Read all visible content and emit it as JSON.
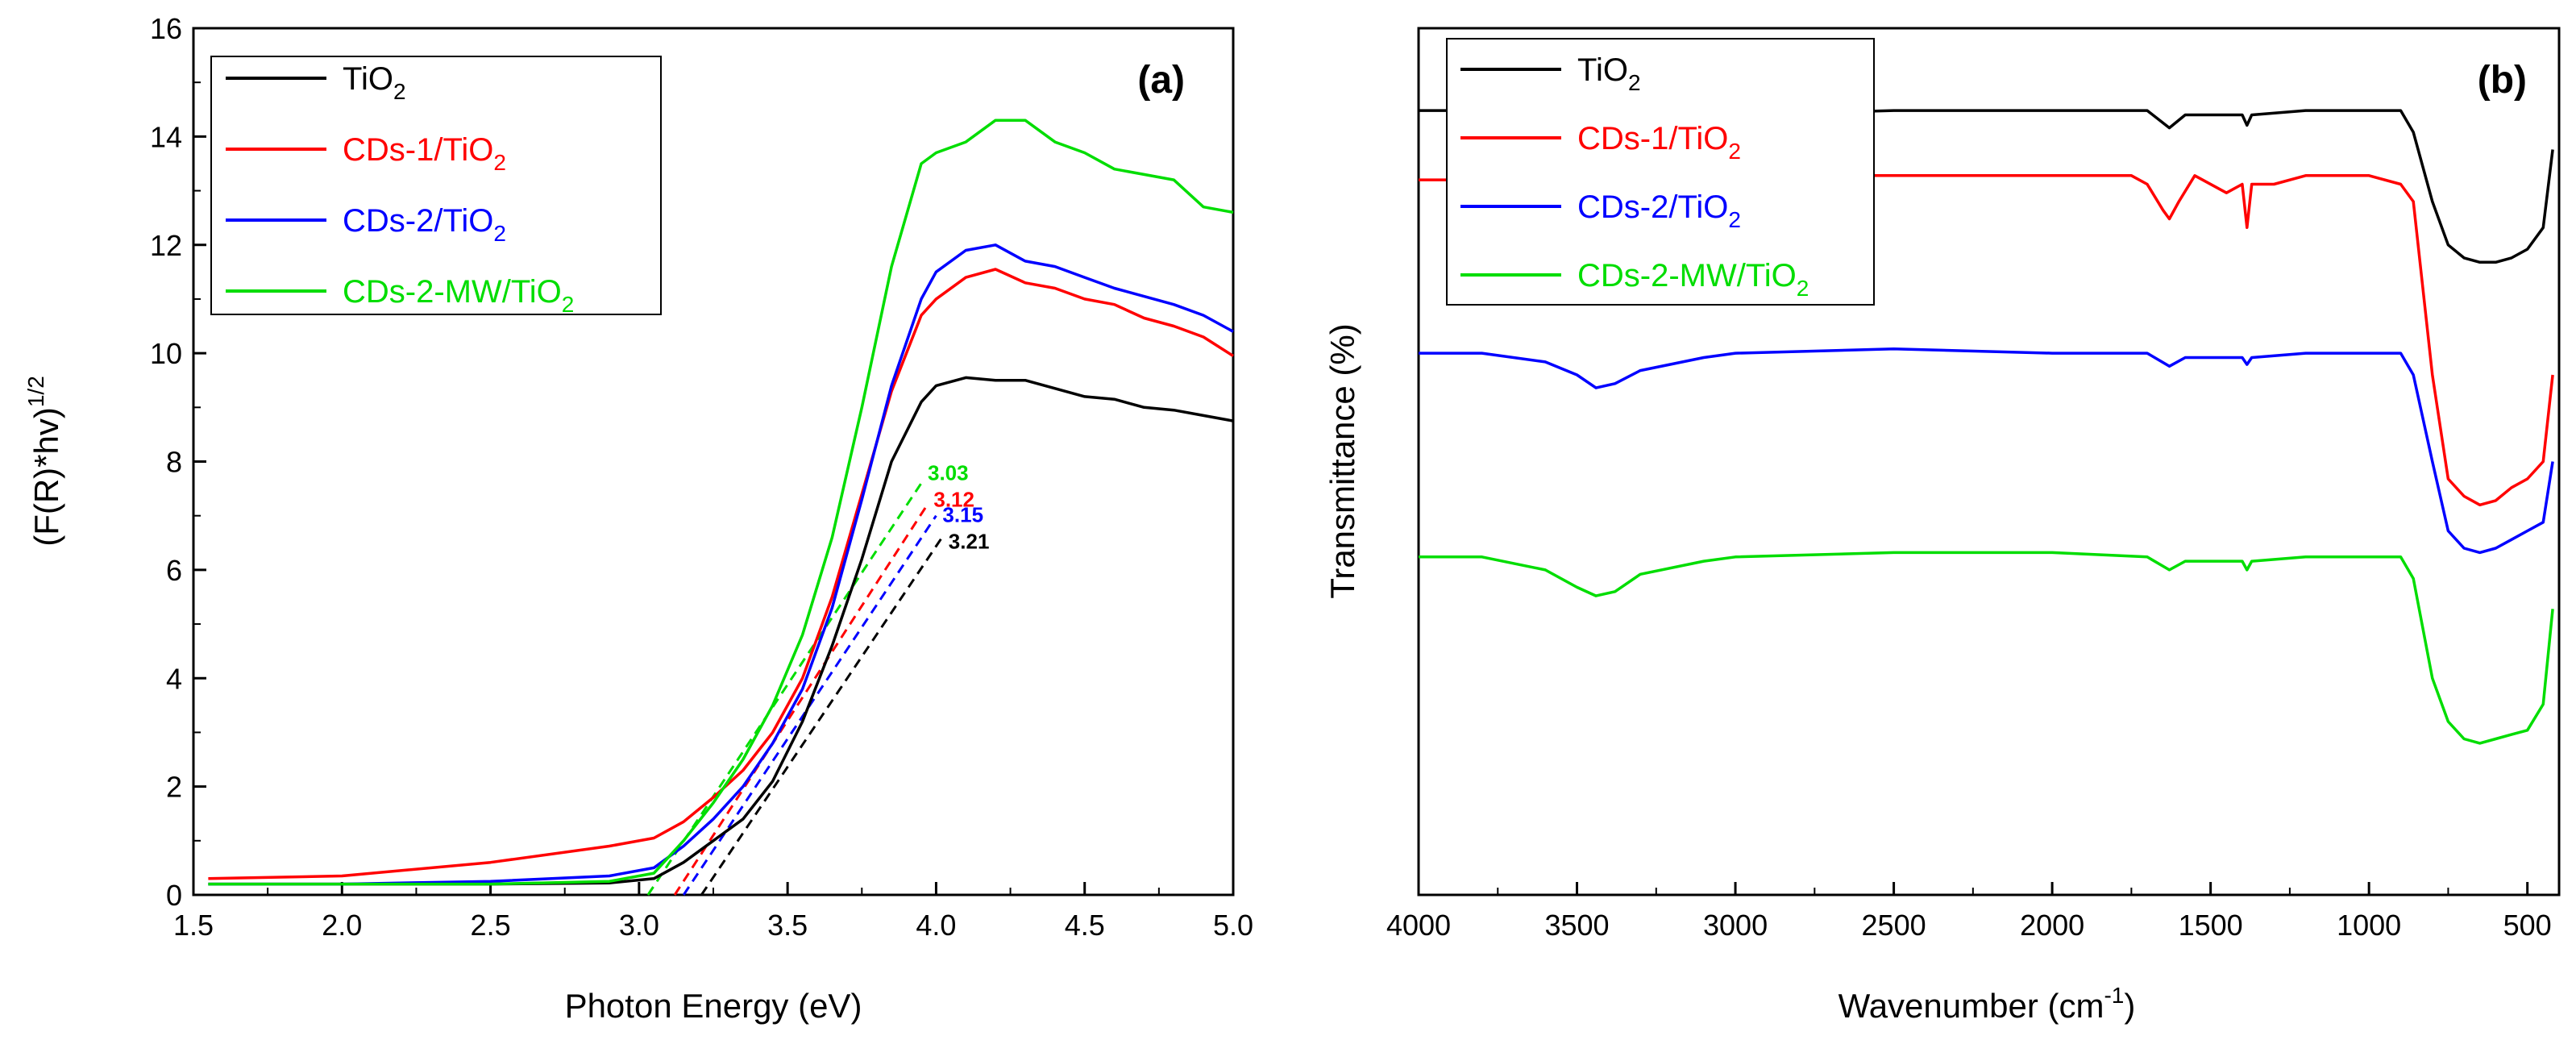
{
  "chart_data": [
    {
      "type": "line",
      "panel_label": "(a)",
      "xlabel": "Photon Energy (eV)",
      "ylabel_main": "(F(R)*hv)",
      "ylabel_sup": "1/2",
      "xlim": [
        1.5,
        5.0
      ],
      "ylim": [
        0,
        16
      ],
      "xticks": [
        "1.5",
        "2.0",
        "2.5",
        "3.0",
        "3.5",
        "4.0",
        "4.5",
        "5.0"
      ],
      "yticks": [
        "0",
        "2",
        "4",
        "6",
        "8",
        "10",
        "12",
        "14",
        "16"
      ],
      "series": [
        {
          "name_main": "TiO",
          "name_sub": "2",
          "color": "#000000",
          "x": [
            1.55,
            2.0,
            2.5,
            2.9,
            3.05,
            3.15,
            3.25,
            3.35,
            3.45,
            3.55,
            3.65,
            3.75,
            3.85,
            3.95,
            4.0,
            4.1,
            4.2,
            4.3,
            4.4,
            4.5,
            4.6,
            4.7,
            4.8,
            4.9,
            5.0
          ],
          "y": [
            0.2,
            0.2,
            0.2,
            0.22,
            0.3,
            0.6,
            1.0,
            1.4,
            2.1,
            3.2,
            4.6,
            6.2,
            8.0,
            9.1,
            9.4,
            9.55,
            9.5,
            9.5,
            9.35,
            9.2,
            9.15,
            9.0,
            8.95,
            8.85,
            8.75
          ]
        },
        {
          "name_main": "CDs-1/TiO",
          "name_sub": "2",
          "color": "#ff0000",
          "x": [
            1.55,
            2.0,
            2.5,
            2.9,
            3.05,
            3.15,
            3.25,
            3.35,
            3.45,
            3.55,
            3.65,
            3.75,
            3.85,
            3.95,
            4.0,
            4.1,
            4.2,
            4.3,
            4.4,
            4.5,
            4.6,
            4.7,
            4.8,
            4.9,
            5.0
          ],
          "y": [
            0.3,
            0.35,
            0.6,
            0.9,
            1.05,
            1.35,
            1.8,
            2.3,
            3.0,
            4.0,
            5.5,
            7.4,
            9.3,
            10.7,
            11.0,
            11.4,
            11.55,
            11.3,
            11.2,
            11.0,
            10.9,
            10.65,
            10.5,
            10.3,
            9.95
          ]
        },
        {
          "name_main": "CDs-2/TiO",
          "name_sub": "2",
          "color": "#0000ff",
          "x": [
            1.55,
            2.0,
            2.5,
            2.9,
            3.05,
            3.15,
            3.25,
            3.35,
            3.45,
            3.55,
            3.65,
            3.75,
            3.85,
            3.95,
            4.0,
            4.1,
            4.2,
            4.3,
            4.4,
            4.5,
            4.6,
            4.7,
            4.8,
            4.9,
            5.0
          ],
          "y": [
            0.2,
            0.2,
            0.25,
            0.35,
            0.5,
            0.9,
            1.4,
            2.0,
            2.8,
            3.8,
            5.3,
            7.3,
            9.4,
            11.0,
            11.5,
            11.9,
            12.0,
            11.7,
            11.6,
            11.4,
            11.2,
            11.05,
            10.9,
            10.7,
            10.4
          ]
        },
        {
          "name_main": "CDs-2-MW/TiO",
          "name_sub": "2",
          "color": "#00dd00",
          "x": [
            1.55,
            2.0,
            2.5,
            2.9,
            3.05,
            3.15,
            3.25,
            3.35,
            3.45,
            3.55,
            3.65,
            3.75,
            3.85,
            3.95,
            4.0,
            4.1,
            4.2,
            4.3,
            4.4,
            4.5,
            4.6,
            4.7,
            4.8,
            4.9,
            5.0
          ],
          "y": [
            0.2,
            0.2,
            0.2,
            0.25,
            0.4,
            1.0,
            1.7,
            2.5,
            3.5,
            4.8,
            6.6,
            9.0,
            11.6,
            13.5,
            13.7,
            13.9,
            14.3,
            14.3,
            13.9,
            13.7,
            13.4,
            13.3,
            13.2,
            12.7,
            12.6
          ]
        }
      ],
      "tangents": [
        {
          "label": "3.03",
          "color": "#00dd00",
          "x0": 3.03,
          "x1": 3.95,
          "y1": 7.6
        },
        {
          "label": "3.12",
          "color": "#ff0000",
          "x0": 3.12,
          "x1": 3.97,
          "y1": 7.2
        },
        {
          "label": "3.15",
          "color": "#0000ff",
          "x0": 3.15,
          "x1": 4.0,
          "y1": 7.0
        },
        {
          "label": "3.21",
          "color": "#000000",
          "x0": 3.21,
          "x1": 4.02,
          "y1": 6.6
        }
      ]
    },
    {
      "type": "line",
      "panel_label": "(b)",
      "xlabel_main": "Wavenumber (cm",
      "xlabel_sup": "-1",
      "xlabel_end": ")",
      "ylabel": "Transmittance (%)",
      "xlim": [
        4000,
        400
      ],
      "ylim": [
        0,
        1
      ],
      "xticks": [
        "4000",
        "3500",
        "3000",
        "2500",
        "2000",
        "1500",
        "1000",
        "500"
      ],
      "yticks": [],
      "series": [
        {
          "name_main": "TiO",
          "name_sub": "2",
          "color": "#000000",
          "x": [
            4000,
            3800,
            3600,
            3500,
            3440,
            3380,
            3300,
            3100,
            3000,
            2500,
            2000,
            1700,
            1630,
            1580,
            1500,
            1400,
            1385,
            1370,
            1200,
            1000,
            900,
            860,
            800,
            750,
            700,
            650,
            600,
            550,
            500,
            450,
            420
          ],
          "y": [
            0.905,
            0.905,
            0.895,
            0.865,
            0.845,
            0.855,
            0.88,
            0.9,
            0.9,
            0.905,
            0.905,
            0.905,
            0.885,
            0.9,
            0.9,
            0.9,
            0.888,
            0.9,
            0.905,
            0.905,
            0.905,
            0.88,
            0.8,
            0.75,
            0.735,
            0.73,
            0.73,
            0.735,
            0.745,
            0.77,
            0.86
          ]
        },
        {
          "name_main": "CDs-1/TiO",
          "name_sub": "2",
          "color": "#ff0000",
          "x": [
            4000,
            3800,
            3700,
            3600,
            3500,
            3440,
            3380,
            3300,
            3200,
            3100,
            3000,
            2500,
            2000,
            1750,
            1700,
            1650,
            1630,
            1600,
            1550,
            1450,
            1400,
            1385,
            1370,
            1300,
            1200,
            1000,
            900,
            860,
            800,
            750,
            700,
            650,
            600,
            550,
            500,
            450,
            420
          ],
          "y": [
            0.825,
            0.825,
            0.815,
            0.78,
            0.71,
            0.7,
            0.71,
            0.76,
            0.8,
            0.82,
            0.83,
            0.83,
            0.83,
            0.83,
            0.82,
            0.79,
            0.78,
            0.8,
            0.83,
            0.81,
            0.82,
            0.77,
            0.82,
            0.82,
            0.83,
            0.83,
            0.82,
            0.8,
            0.6,
            0.48,
            0.46,
            0.45,
            0.455,
            0.47,
            0.48,
            0.5,
            0.6
          ]
        },
        {
          "name_main": "CDs-2/TiO",
          "name_sub": "2",
          "color": "#0000ff",
          "x": [
            4000,
            3800,
            3600,
            3500,
            3440,
            3380,
            3300,
            3100,
            3000,
            2500,
            2000,
            1700,
            1630,
            1580,
            1500,
            1400,
            1385,
            1370,
            1200,
            1000,
            900,
            860,
            800,
            750,
            700,
            650,
            600,
            550,
            500,
            450,
            420
          ],
          "y": [
            0.625,
            0.625,
            0.615,
            0.6,
            0.585,
            0.59,
            0.605,
            0.62,
            0.625,
            0.63,
            0.625,
            0.625,
            0.61,
            0.62,
            0.62,
            0.62,
            0.612,
            0.62,
            0.625,
            0.625,
            0.625,
            0.6,
            0.5,
            0.42,
            0.4,
            0.395,
            0.4,
            0.41,
            0.42,
            0.43,
            0.5
          ]
        },
        {
          "name_main": "CDs-2-MW/TiO",
          "name_sub": "2",
          "color": "#00dd00",
          "x": [
            4000,
            3800,
            3600,
            3500,
            3440,
            3380,
            3300,
            3100,
            3000,
            2500,
            2000,
            1700,
            1630,
            1580,
            1500,
            1400,
            1385,
            1370,
            1200,
            1000,
            900,
            860,
            800,
            750,
            700,
            650,
            600,
            550,
            500,
            450,
            420
          ],
          "y": [
            0.39,
            0.39,
            0.375,
            0.355,
            0.345,
            0.35,
            0.37,
            0.385,
            0.39,
            0.395,
            0.395,
            0.39,
            0.375,
            0.385,
            0.385,
            0.385,
            0.375,
            0.385,
            0.39,
            0.39,
            0.39,
            0.365,
            0.25,
            0.2,
            0.18,
            0.175,
            0.18,
            0.185,
            0.19,
            0.22,
            0.33
          ]
        }
      ]
    }
  ]
}
